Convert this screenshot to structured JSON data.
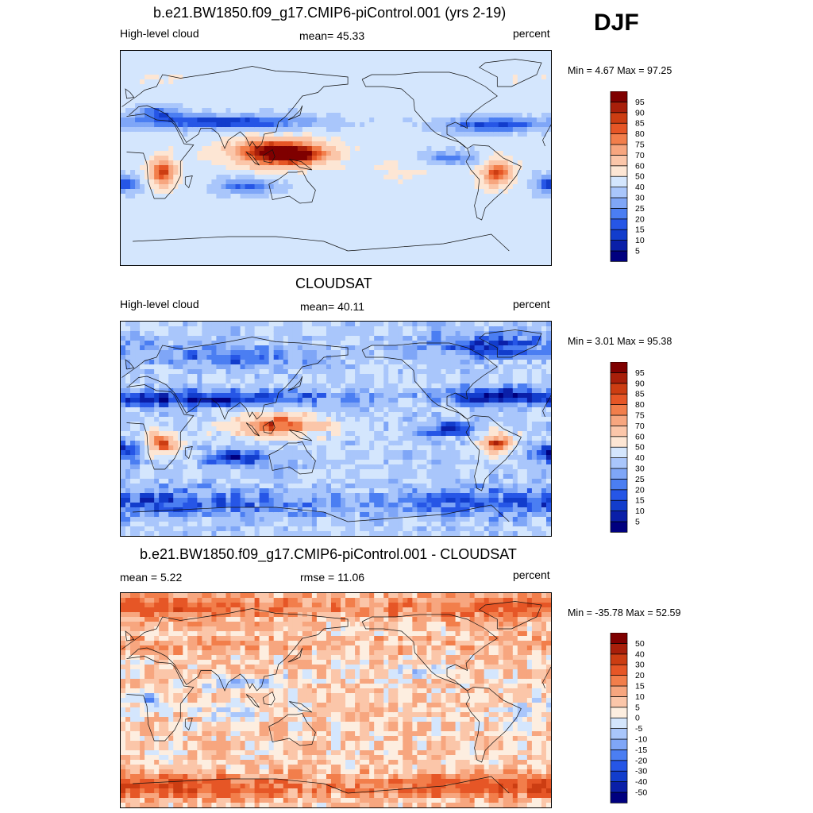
{
  "season": "DJF",
  "panels": [
    {
      "title": "b.e21.BW1850.f09_g17.CMIP6-piControl.001 (yrs 2-19)",
      "left_label": "High-level cloud",
      "center_label": "mean=  45.33",
      "units": "percent",
      "minmax": "Min =   4.67 Max =  97.25"
    },
    {
      "title": "CLOUDSAT",
      "left_label": "High-level cloud",
      "center_label": "mean=  40.11",
      "units": "percent",
      "minmax": "Min =   3.01 Max =  95.38"
    },
    {
      "title": "b.e21.BW1850.f09_g17.CMIP6-piControl.001 - CLOUDSAT",
      "left_label": "mean =   5.22",
      "center_label": "rmse =  11.06",
      "units": "percent",
      "minmax": "Min = -35.78 Max =  52.59"
    }
  ],
  "colors": {
    "abs_scale": [
      "#00007f",
      "#0a1fa8",
      "#123dcc",
      "#2656e6",
      "#4b7ef2",
      "#7fa6f7",
      "#a9c6fb",
      "#d4e6fd",
      "#fde6d4",
      "#fbc6a9",
      "#f7a67f",
      "#f27e4b",
      "#e65626",
      "#cc3d12",
      "#a81f0a",
      "#7f0000"
    ],
    "diff_scale": [
      "#00007f",
      "#0a1fa8",
      "#123dcc",
      "#2656e6",
      "#4b7ef2",
      "#7fa6f7",
      "#a9c6fb",
      "#d4e6fd",
      "#fdeee0",
      "#fbc6a9",
      "#f7a67f",
      "#f27e4b",
      "#e65626",
      "#cc3d12",
      "#a81f0a",
      "#7f0000"
    ]
  },
  "chart_data": [
    {
      "type": "heatmap",
      "title": "b.e21.BW1850.f09_g17.CMIP6-piControl.001 (yrs 2-19)",
      "variable": "High-level cloud",
      "units": "percent",
      "mean": 45.33,
      "min": 4.67,
      "max": 97.25,
      "colorbar_labels": [
        "5",
        "10",
        "15",
        "20",
        "25",
        "30",
        "40",
        "50",
        "60",
        "70",
        "75",
        "80",
        "85",
        "90",
        "95"
      ],
      "colorbar_levels": [
        5,
        10,
        15,
        20,
        25,
        30,
        40,
        50,
        60,
        70,
        75,
        80,
        85,
        90,
        95
      ],
      "base": 45,
      "blobs": [
        {
          "lon": 115,
          "lat": 5,
          "rx": 38,
          "ry": 12,
          "amp": 45
        },
        {
          "lon": 140,
          "lat": 3,
          "rx": 30,
          "ry": 10,
          "amp": 30
        },
        {
          "lon": 25,
          "lat": -12,
          "rx": 12,
          "ry": 12,
          "amp": 42
        },
        {
          "lon": -55,
          "lat": -12,
          "rx": 14,
          "ry": 12,
          "amp": 40
        },
        {
          "lon": 80,
          "lat": 30,
          "rx": 80,
          "ry": 7,
          "amp": -33
        },
        {
          "lon": -60,
          "lat": 28,
          "rx": 45,
          "ry": 7,
          "amp": -30
        },
        {
          "lon": 20,
          "lat": 38,
          "rx": 20,
          "ry": 6,
          "amp": -22
        },
        {
          "lon": 95,
          "lat": -24,
          "rx": 28,
          "ry": 7,
          "amp": -28
        },
        {
          "lon": -95,
          "lat": 0,
          "rx": 30,
          "ry": 7,
          "amp": -25
        },
        {
          "lon": -10,
          "lat": -22,
          "rx": 18,
          "ry": 8,
          "amp": -30
        },
        {
          "lon": -130,
          "lat": -10,
          "rx": 40,
          "ry": 10,
          "amp": 8
        },
        {
          "lon": 0,
          "lat": 65,
          "rx": 60,
          "ry": 8,
          "amp": 5
        }
      ],
      "noise": 3
    },
    {
      "type": "heatmap",
      "title": "CLOUDSAT",
      "variable": "High-level cloud",
      "units": "percent",
      "mean": 40.11,
      "min": 3.01,
      "max": 95.38,
      "colorbar_labels": [
        "5",
        "10",
        "15",
        "20",
        "25",
        "30",
        "40",
        "50",
        "60",
        "70",
        "75",
        "80",
        "85",
        "90",
        "95"
      ],
      "colorbar_levels": [
        5,
        10,
        15,
        20,
        25,
        30,
        40,
        50,
        60,
        70,
        75,
        80,
        85,
        90,
        95
      ],
      "base": 38,
      "blobs": [
        {
          "lon": 120,
          "lat": 3,
          "rx": 40,
          "ry": 11,
          "amp": 45
        },
        {
          "lon": 25,
          "lat": -12,
          "rx": 13,
          "ry": 11,
          "amp": 45
        },
        {
          "lon": -55,
          "lat": -12,
          "rx": 14,
          "ry": 11,
          "amp": 45
        },
        {
          "lon": 60,
          "lat": 25,
          "rx": 120,
          "ry": 7,
          "amp": -30
        },
        {
          "lon": -60,
          "lat": 28,
          "rx": 40,
          "ry": 7,
          "amp": -28
        },
        {
          "lon": 90,
          "lat": -25,
          "rx": 30,
          "ry": 7,
          "amp": -28
        },
        {
          "lon": -95,
          "lat": 0,
          "rx": 30,
          "ry": 7,
          "amp": -25
        },
        {
          "lon": -10,
          "lat": -20,
          "rx": 18,
          "ry": 8,
          "amp": -30
        },
        {
          "lon": 0,
          "lat": -62,
          "rx": 180,
          "ry": 12,
          "amp": -22
        },
        {
          "lon": -60,
          "lat": 70,
          "rx": 60,
          "ry": 10,
          "amp": -25
        },
        {
          "lon": 80,
          "lat": 60,
          "rx": 60,
          "ry": 10,
          "amp": -18
        }
      ],
      "noise": 9
    },
    {
      "type": "heatmap",
      "title": "b.e21.BW1850.f09_g17.CMIP6-piControl.001 - CLOUDSAT",
      "units": "percent",
      "mean": 5.22,
      "rmse": 11.06,
      "min": -35.78,
      "max": 52.59,
      "colorbar_labels": [
        "-50",
        "-40",
        "-30",
        "-20",
        "-15",
        "-10",
        "-5",
        "0",
        "5",
        "10",
        "15",
        "20",
        "30",
        "40",
        "50"
      ],
      "colorbar_levels": [
        -50,
        -40,
        -30,
        -20,
        -15,
        -10,
        -5,
        0,
        5,
        10,
        15,
        20,
        30,
        40,
        50
      ],
      "base": 6,
      "blobs": [
        {
          "lon": 0,
          "lat": 78,
          "rx": 180,
          "ry": 10,
          "amp": 18
        },
        {
          "lon": 0,
          "lat": -72,
          "rx": 180,
          "ry": 10,
          "amp": 22
        },
        {
          "lon": 0,
          "lat": 48,
          "rx": 180,
          "ry": 8,
          "amp": 6
        },
        {
          "lon": 100,
          "lat": 15,
          "rx": 40,
          "ry": 6,
          "amp": -14
        },
        {
          "lon": 80,
          "lat": -10,
          "rx": 30,
          "ry": 8,
          "amp": -10
        },
        {
          "lon": 15,
          "lat": 0,
          "rx": 12,
          "ry": 8,
          "amp": -14
        },
        {
          "lon": -20,
          "lat": -5,
          "rx": 15,
          "ry": 8,
          "amp": -10
        },
        {
          "lon": -40,
          "lat": -10,
          "rx": 10,
          "ry": 8,
          "amp": -8
        },
        {
          "lon": -120,
          "lat": 25,
          "rx": 25,
          "ry": 6,
          "amp": -10
        }
      ],
      "noise": 8
    }
  ]
}
